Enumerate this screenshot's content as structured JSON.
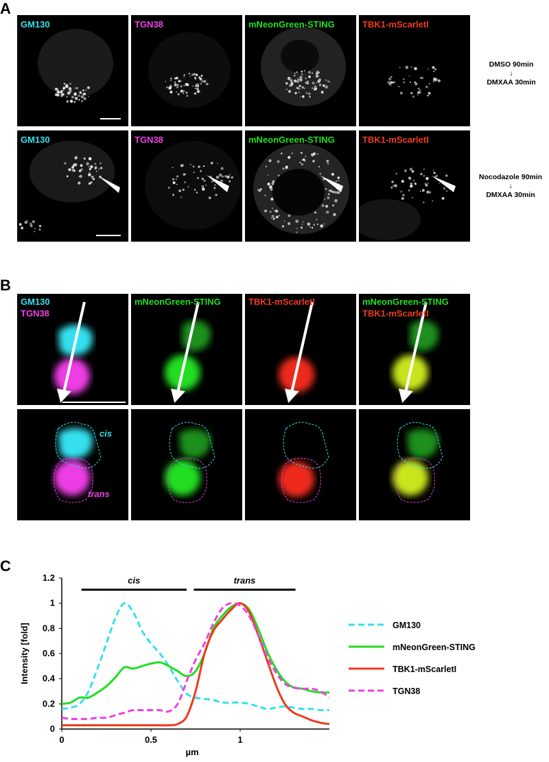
{
  "panels": {
    "a": {
      "letter": "A",
      "row1": {
        "labels": [
          "GM130",
          "TGN38",
          "mNeonGreen-STING",
          "TBK1-mScarletI"
        ],
        "condition_line1": "DMSO 90min",
        "arrow": "↓",
        "condition_line2": "DMXAA 30min"
      },
      "row2": {
        "labels": [
          "GM130",
          "TGN38",
          "mNeonGreen-STING",
          "TBK1-mScarletI"
        ],
        "condition_line1": "Nocodazole 90min",
        "arrow": "↓",
        "condition_line2": "DMXAA 30min"
      }
    },
    "b": {
      "letter": "B",
      "top": {
        "tile1_line1": "GM130",
        "tile1_line2": "TGN38",
        "tile2": "mNeonGreen-STING",
        "tile3": "TBK1-mScarletI",
        "tile4_line1": "mNeonGreen-STING",
        "tile4_line2": "TBK1-mScarletI"
      },
      "bottom": {
        "cis": "cis",
        "trans": "trans"
      }
    },
    "c": {
      "letter": "C"
    }
  },
  "colors": {
    "cyan": "#35e0ee",
    "magenta": "#ee3ee6",
    "green": "#21dd21",
    "red": "#ee3a1c",
    "white": "#ffffff"
  },
  "chart_data": {
    "type": "line",
    "xlabel": "µm",
    "ylabel": "Intensity [fold]",
    "xlim": [
      0,
      1.5
    ],
    "ylim": [
      0,
      1.2
    ],
    "xticks": [
      0,
      0.5,
      1
    ],
    "yticks": [
      0,
      0.2,
      0.4,
      0.6,
      0.8,
      1,
      1.2
    ],
    "annotations": [
      {
        "label": "cis",
        "x_start": 0.11,
        "x_end": 0.7
      },
      {
        "label": "trans",
        "x_start": 0.74,
        "x_end": 1.31
      }
    ],
    "series": [
      {
        "name": "GM130",
        "color": "#35e0ee",
        "dash": true,
        "x": [
          0,
          0.05,
          0.1,
          0.15,
          0.2,
          0.25,
          0.3,
          0.35,
          0.4,
          0.45,
          0.5,
          0.55,
          0.6,
          0.65,
          0.7,
          0.75,
          0.8,
          0.85,
          0.9,
          0.95,
          1.0,
          1.05,
          1.1,
          1.15,
          1.2,
          1.25,
          1.3,
          1.35,
          1.4,
          1.45,
          1.5
        ],
        "y": [
          0.16,
          0.17,
          0.2,
          0.3,
          0.48,
          0.68,
          0.88,
          1.0,
          0.93,
          0.78,
          0.68,
          0.6,
          0.5,
          0.38,
          0.28,
          0.25,
          0.24,
          0.23,
          0.21,
          0.21,
          0.21,
          0.2,
          0.18,
          0.16,
          0.17,
          0.18,
          0.17,
          0.16,
          0.16,
          0.15,
          0.15
        ]
      },
      {
        "name": "mNeonGreen-STING",
        "color": "#21dd21",
        "dash": false,
        "x": [
          0,
          0.05,
          0.1,
          0.15,
          0.2,
          0.25,
          0.3,
          0.35,
          0.4,
          0.45,
          0.5,
          0.55,
          0.6,
          0.65,
          0.7,
          0.75,
          0.8,
          0.85,
          0.9,
          0.95,
          1.0,
          1.05,
          1.1,
          1.15,
          1.2,
          1.25,
          1.3,
          1.35,
          1.4,
          1.45,
          1.5
        ],
        "y": [
          0.2,
          0.21,
          0.25,
          0.25,
          0.29,
          0.34,
          0.41,
          0.49,
          0.48,
          0.5,
          0.52,
          0.53,
          0.5,
          0.46,
          0.42,
          0.46,
          0.6,
          0.8,
          0.9,
          0.97,
          1.0,
          0.95,
          0.8,
          0.62,
          0.48,
          0.38,
          0.33,
          0.32,
          0.3,
          0.29,
          0.29
        ]
      },
      {
        "name": "TBK1-mScarletI",
        "color": "#ee3a1c",
        "dash": false,
        "x": [
          0,
          0.05,
          0.1,
          0.15,
          0.2,
          0.25,
          0.3,
          0.35,
          0.4,
          0.45,
          0.5,
          0.55,
          0.6,
          0.65,
          0.7,
          0.75,
          0.8,
          0.85,
          0.9,
          0.95,
          1.0,
          1.05,
          1.1,
          1.15,
          1.2,
          1.25,
          1.3,
          1.35,
          1.4,
          1.45,
          1.5
        ],
        "y": [
          0.03,
          0.03,
          0.03,
          0.03,
          0.03,
          0.03,
          0.03,
          0.03,
          0.03,
          0.03,
          0.03,
          0.03,
          0.03,
          0.04,
          0.1,
          0.3,
          0.6,
          0.78,
          0.87,
          0.95,
          1.0,
          0.93,
          0.75,
          0.55,
          0.35,
          0.2,
          0.13,
          0.1,
          0.07,
          0.05,
          0.04
        ]
      },
      {
        "name": "TGN38",
        "color": "#ee3ee6",
        "dash": true,
        "x": [
          0,
          0.05,
          0.1,
          0.15,
          0.2,
          0.25,
          0.3,
          0.35,
          0.4,
          0.45,
          0.5,
          0.55,
          0.6,
          0.65,
          0.7,
          0.75,
          0.8,
          0.85,
          0.9,
          0.95,
          1.0,
          1.05,
          1.1,
          1.15,
          1.2,
          1.25,
          1.3,
          1.35,
          1.4,
          1.45,
          1.5
        ],
        "y": [
          0.09,
          0.08,
          0.08,
          0.08,
          0.09,
          0.09,
          0.11,
          0.13,
          0.15,
          0.15,
          0.15,
          0.15,
          0.14,
          0.2,
          0.38,
          0.55,
          0.68,
          0.84,
          0.96,
          1.0,
          0.98,
          0.9,
          0.75,
          0.58,
          0.45,
          0.36,
          0.33,
          0.32,
          0.32,
          0.3,
          0.25
        ]
      }
    ]
  }
}
